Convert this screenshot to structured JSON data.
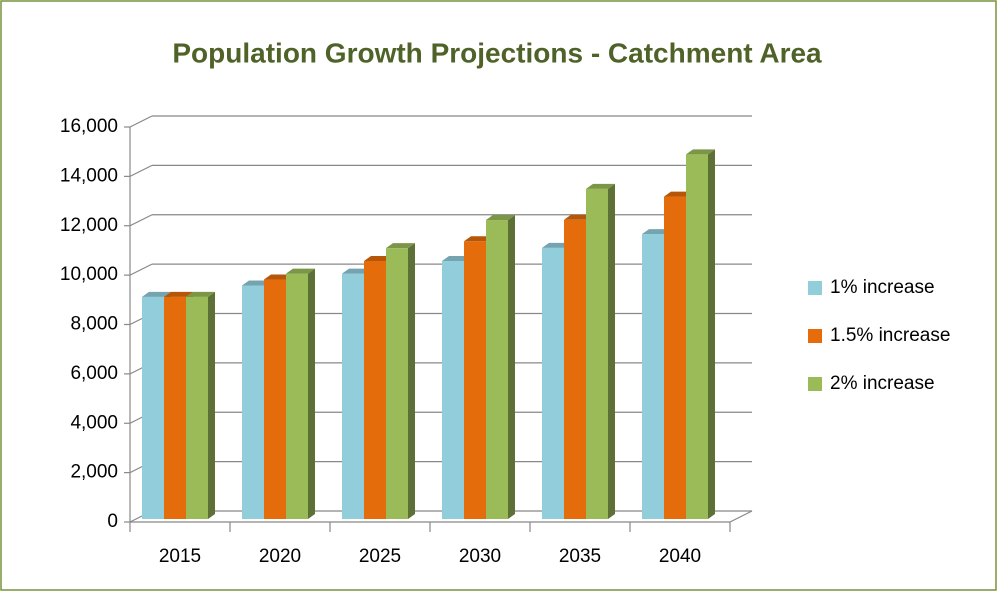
{
  "chart_data": {
    "type": "bar3d",
    "title": "Population Growth Projections - Catchment Area",
    "categories": [
      "2015",
      "2020",
      "2025",
      "2030",
      "2035",
      "2040"
    ],
    "series": [
      {
        "name": "1% increase",
        "color": "#92cddc",
        "values": [
          9000,
          9460,
          9940,
          10450,
          10980,
          11540
        ]
      },
      {
        "name": "1.5% increase",
        "color": "#e46c0a",
        "values": [
          9000,
          9700,
          10450,
          11250,
          12120,
          13060
        ]
      },
      {
        "name": "2% increase",
        "color": "#9bbb59",
        "values": [
          9000,
          9940,
          10970,
          12110,
          13370,
          14770
        ]
      }
    ],
    "ylim": [
      0,
      16000
    ],
    "yticks": [
      0,
      {
        "value": 2000,
        "label": "2,000"
      },
      {
        "value": 4000,
        "label": "4,000"
      },
      {
        "value": 6000,
        "label": "6,000"
      },
      {
        "value": 8000,
        "label": "8,000"
      },
      {
        "value": 10000,
        "label": "10,000"
      },
      {
        "value": 12000,
        "label": "12,000"
      },
      {
        "value": 14000,
        "label": "14,000"
      },
      {
        "value": 16000,
        "label": "16,000"
      }
    ],
    "grid": true,
    "legend": "right"
  }
}
